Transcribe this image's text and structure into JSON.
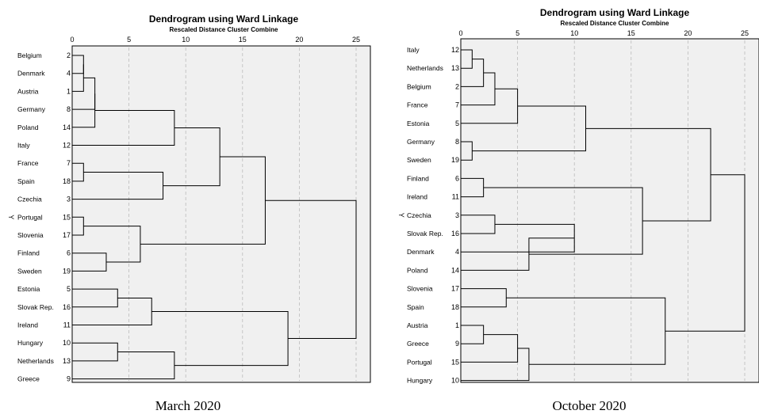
{
  "panels": [
    {
      "title": "Dendrogram using Ward Linkage",
      "subtitle": "Rescaled Distance Cluster Combine",
      "caption": "March 2020",
      "ticks": [
        "0",
        "5",
        "10",
        "15",
        "20",
        "25"
      ],
      "marker": "Y",
      "marked_leaf": "Portugal",
      "leaves": [
        {
          "label": "Belgium",
          "case": "2"
        },
        {
          "label": "Denmark",
          "case": "4"
        },
        {
          "label": "Austria",
          "case": "1"
        },
        {
          "label": "Germany",
          "case": "8"
        },
        {
          "label": "Poland",
          "case": "14"
        },
        {
          "label": "Italy",
          "case": "12"
        },
        {
          "label": "France",
          "case": "7"
        },
        {
          "label": "Spain",
          "case": "18"
        },
        {
          "label": "Czechia",
          "case": "3"
        },
        {
          "label": "Portugal",
          "case": "15"
        },
        {
          "label": "Slovenia",
          "case": "17"
        },
        {
          "label": "Finland",
          "case": "6"
        },
        {
          "label": "Sweden",
          "case": "19"
        },
        {
          "label": "Estonia",
          "case": "5"
        },
        {
          "label": "Slovak Rep.",
          "case": "16"
        },
        {
          "label": "Ireland",
          "case": "11"
        },
        {
          "label": "Hungary",
          "case": "10"
        },
        {
          "label": "Netherlands",
          "case": "13"
        },
        {
          "label": "Greece",
          "case": "9"
        }
      ],
      "merges": [
        {
          "children": [
            "L0",
            "L1"
          ],
          "distance": 1
        },
        {
          "children": [
            "M0",
            "L2"
          ],
          "distance": 1
        },
        {
          "children": [
            "M1",
            "L3"
          ],
          "distance": 2
        },
        {
          "children": [
            "M2",
            "L4"
          ],
          "distance": 2
        },
        {
          "children": [
            "M3",
            "L5"
          ],
          "distance": 9
        },
        {
          "children": [
            "L6",
            "L7"
          ],
          "distance": 1
        },
        {
          "children": [
            "M5",
            "L8"
          ],
          "distance": 8
        },
        {
          "children": [
            "M4",
            "M6"
          ],
          "distance": 13
        },
        {
          "children": [
            "L9",
            "L10"
          ],
          "distance": 1
        },
        {
          "children": [
            "L11",
            "L12"
          ],
          "distance": 3
        },
        {
          "children": [
            "M8",
            "M9"
          ],
          "distance": 6
        },
        {
          "children": [
            "M7",
            "M10"
          ],
          "distance": 17
        },
        {
          "children": [
            "L13",
            "L14"
          ],
          "distance": 4
        },
        {
          "children": [
            "M12",
            "L15"
          ],
          "distance": 7
        },
        {
          "children": [
            "L16",
            "L17"
          ],
          "distance": 4
        },
        {
          "children": [
            "M14",
            "L18"
          ],
          "distance": 9
        },
        {
          "children": [
            "M13",
            "M15"
          ],
          "distance": 19
        },
        {
          "children": [
            "M11",
            "M16"
          ],
          "distance": 25
        }
      ]
    },
    {
      "title": "Dendrogram using Ward Linkage",
      "subtitle": "Rescaled Distance Cluster Combine",
      "caption": "October 2020",
      "ticks": [
        "0",
        "5",
        "10",
        "15",
        "20",
        "25"
      ],
      "marker": "Y",
      "marked_leaf": "Czechia",
      "leaves": [
        {
          "label": "Italy",
          "case": "12"
        },
        {
          "label": "Netherlands",
          "case": "13"
        },
        {
          "label": "Belgium",
          "case": "2"
        },
        {
          "label": "France",
          "case": "7"
        },
        {
          "label": "Estonia",
          "case": "5"
        },
        {
          "label": "Germany",
          "case": "8"
        },
        {
          "label": "Sweden",
          "case": "19"
        },
        {
          "label": "Finland",
          "case": "6"
        },
        {
          "label": "Ireland",
          "case": "11"
        },
        {
          "label": "Czechia",
          "case": "3"
        },
        {
          "label": "Slovak Rep.",
          "case": "16"
        },
        {
          "label": "Denmark",
          "case": "4"
        },
        {
          "label": "Poland",
          "case": "14"
        },
        {
          "label": "Slovenia",
          "case": "17"
        },
        {
          "label": "Spain",
          "case": "18"
        },
        {
          "label": "Austria",
          "case": "1"
        },
        {
          "label": "Greece",
          "case": "9"
        },
        {
          "label": "Portugal",
          "case": "15"
        },
        {
          "label": "Hungary",
          "case": "10"
        }
      ],
      "merges": [
        {
          "children": [
            "L0",
            "L1"
          ],
          "distance": 1
        },
        {
          "children": [
            "M0",
            "L2"
          ],
          "distance": 2
        },
        {
          "children": [
            "M1",
            "L3"
          ],
          "distance": 3
        },
        {
          "children": [
            "M2",
            "L4"
          ],
          "distance": 5
        },
        {
          "children": [
            "L5",
            "L6"
          ],
          "distance": 1
        },
        {
          "children": [
            "M3",
            "M4"
          ],
          "distance": 11
        },
        {
          "children": [
            "L7",
            "L8"
          ],
          "distance": 2
        },
        {
          "children": [
            "L9",
            "L10"
          ],
          "distance": 3
        },
        {
          "children": [
            "M7",
            "L11"
          ],
          "distance": 10
        },
        {
          "children": [
            "M8",
            "L12"
          ],
          "distance": 6
        },
        {
          "children": [
            "M6",
            "M9"
          ],
          "distance": 16
        },
        {
          "children": [
            "M5",
            "M10"
          ],
          "distance": 22
        },
        {
          "children": [
            "L13",
            "L14"
          ],
          "distance": 4
        },
        {
          "children": [
            "L15",
            "L16"
          ],
          "distance": 2
        },
        {
          "children": [
            "M13",
            "L17"
          ],
          "distance": 5
        },
        {
          "children": [
            "M14",
            "L18"
          ],
          "distance": 6
        },
        {
          "children": [
            "M12",
            "M15"
          ],
          "distance": 18
        },
        {
          "children": [
            "M11",
            "M16"
          ],
          "distance": 25
        }
      ]
    }
  ]
}
